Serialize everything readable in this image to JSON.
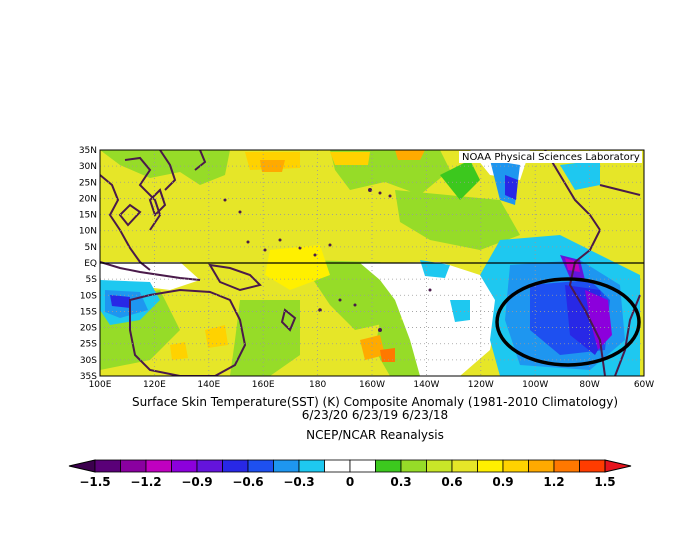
{
  "credit": "NOAA Physical Sciences Laboratory",
  "title": {
    "line1": "Surface Skin Temperature(SST) (K) Composite Anomaly (1981-2010 Climatology)",
    "line2": "6/23/20 6/23/19 6/23/18",
    "line3": "NCEP/NCAR Reanalysis"
  },
  "lat_labels": [
    "35N",
    "30N",
    "25N",
    "20N",
    "15N",
    "10N",
    "5N",
    "EQ",
    "5S",
    "10S",
    "15S",
    "20S",
    "25S",
    "30S",
    "35S"
  ],
  "lon_labels": [
    "100E",
    "120E",
    "140E",
    "160E",
    "180",
    "160W",
    "140W",
    "120W",
    "100W",
    "80W",
    "60W"
  ],
  "colorbar": {
    "labels": [
      "-1.5",
      "-1.2",
      "-0.9",
      "-0.6",
      "-0.3",
      "0",
      "0.3",
      "0.6",
      "0.9",
      "1.2",
      "1.5"
    ],
    "colors": [
      "#5a0078",
      "#8a00a0",
      "#c000c0",
      "#8c00dc",
      "#6414dc",
      "#2828e6",
      "#1e50f0",
      "#1e96f0",
      "#1ec8f0",
      "#ffffff",
      "#ffffff",
      "#3cc81e",
      "#96dc28",
      "#c8e628",
      "#e6e628",
      "#fff000",
      "#ffd200",
      "#ffaa00",
      "#ff7800",
      "#ff3c00"
    ]
  }
}
